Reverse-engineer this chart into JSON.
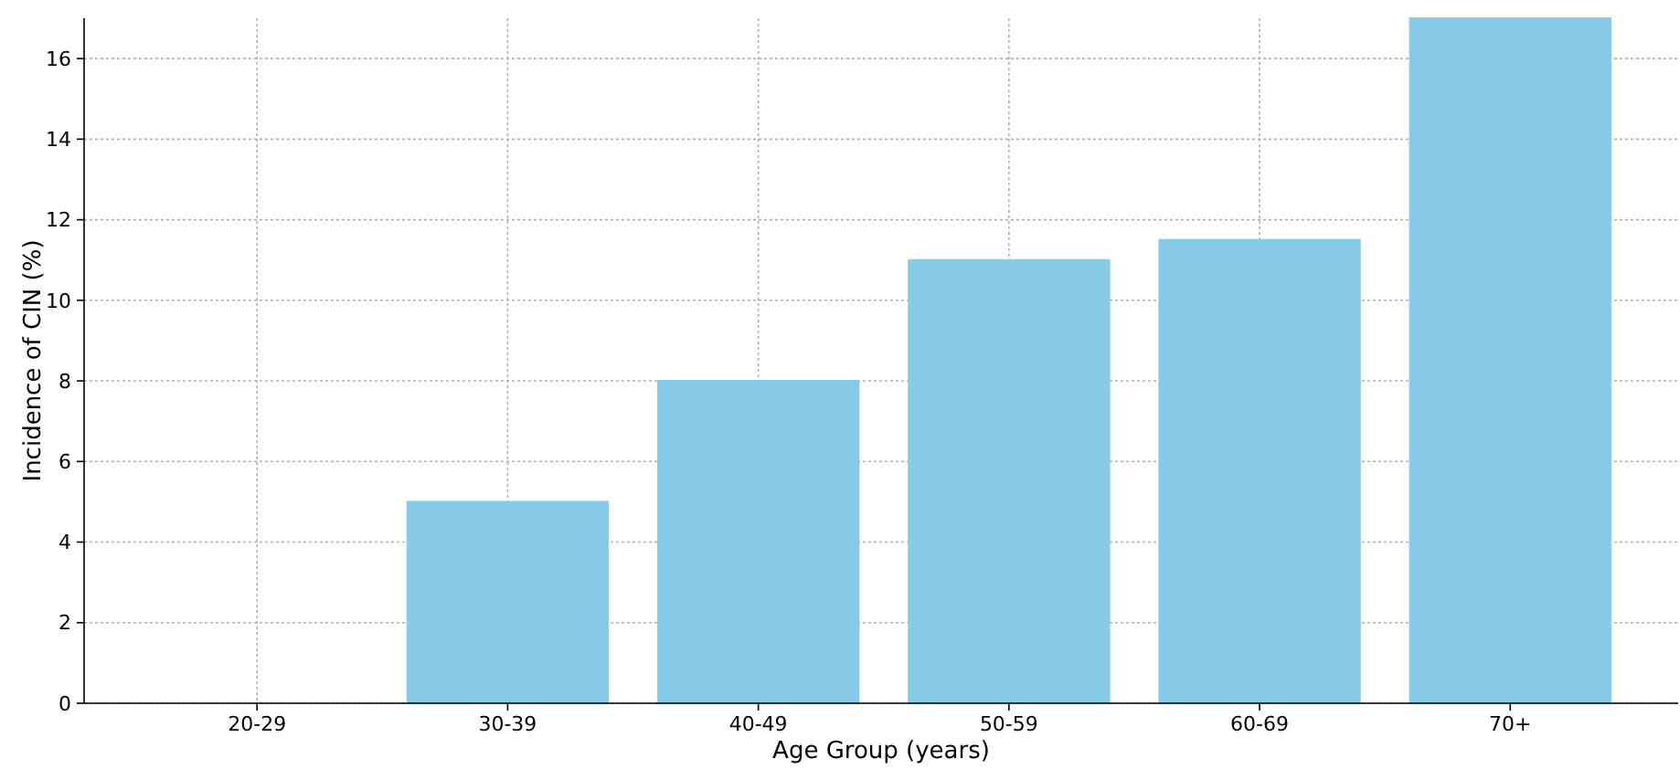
{
  "chart_data": {
    "type": "bar",
    "xlabel": "Age Group (years)",
    "ylabel": "Incidence of CIN (%)",
    "categories": [
      "20-29",
      "30-39",
      "40-49",
      "50-59",
      "60-69",
      "70+"
    ],
    "values": [
      0,
      5,
      8,
      11,
      11.5,
      17
    ],
    "color": "#87cbe8",
    "ylim": [
      0,
      17
    ],
    "yticks": [
      0,
      2,
      4,
      6,
      8,
      10,
      12,
      14,
      16
    ],
    "grid": true
  }
}
